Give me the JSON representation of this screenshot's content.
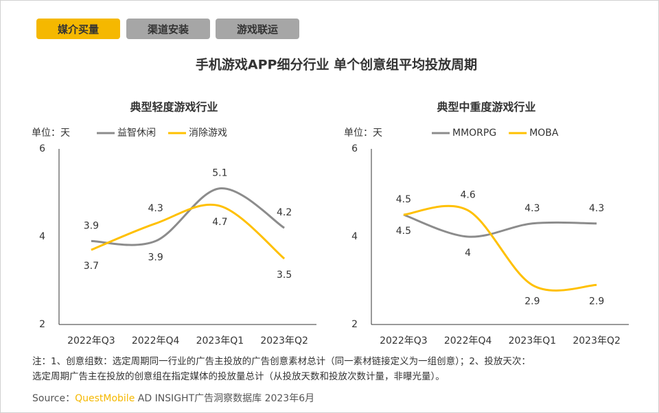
{
  "tabs": [
    "媒介买量",
    "渠道安装",
    "游戏联运"
  ],
  "title": "手机游戏APP细分行业 单个创意组平均投放周期",
  "chart_data": [
    {
      "type": "line",
      "title": "典型轻度游戏行业",
      "unit": "单位：天",
      "categories": [
        "2022年Q3",
        "2022年Q4",
        "2023年Q1",
        "2023年Q2"
      ],
      "series": [
        {
          "name": "益智休闲",
          "color": "#8c8c8c",
          "values": [
            3.9,
            3.9,
            5.1,
            4.2
          ]
        },
        {
          "name": "消除游戏",
          "color": "#ffc000",
          "values": [
            3.7,
            4.3,
            4.7,
            3.5
          ]
        }
      ],
      "ylim": [
        2,
        6
      ],
      "yticks": [
        2,
        4,
        6
      ]
    },
    {
      "type": "line",
      "title": "典型中重度游戏行业",
      "unit": "单位：天",
      "categories": [
        "2022年Q3",
        "2022年Q4",
        "2023年Q1",
        "2023年Q2"
      ],
      "series": [
        {
          "name": "MMORPG",
          "color": "#8c8c8c",
          "values": [
            4.5,
            4.0,
            4.3,
            4.3
          ]
        },
        {
          "name": "MOBA",
          "color": "#ffc000",
          "values": [
            4.5,
            4.6,
            2.9,
            2.9
          ]
        }
      ],
      "ylim": [
        2,
        6
      ],
      "yticks": [
        2,
        4,
        6
      ]
    }
  ],
  "note": [
    "注：1、创意组数：选定周期同一行业的广告主投放的广告创意素材总计（同一素材链接定义为一组创意）；2、投放天次：",
    "选定周期广告主在投放的创意组在指定媒体的投放量总计（从投放天数和投放次数计量，非曝光量）。"
  ],
  "source": {
    "label": "Source：",
    "brand": "QuestMobile",
    "text": "AD INSIGHT广告洞察数据库 2023年6月"
  }
}
